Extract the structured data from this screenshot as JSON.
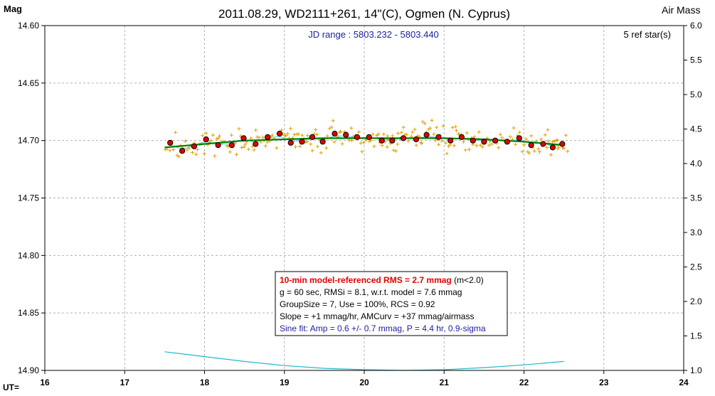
{
  "chart_data": {
    "type": "scatter",
    "title": "2011.08.29, WD2111+261, 14\"(C), Ogmen (N. Cyprus)",
    "y_left_label": "Mag",
    "y_right_label": "Air Mass",
    "x_prefix_label": "UT=",
    "x_range": [
      16,
      24
    ],
    "x_ticks": [
      "16",
      "17",
      "18",
      "19",
      "20",
      "21",
      "22",
      "23",
      "24"
    ],
    "y_left_range": [
      14.6,
      14.9
    ],
    "y_left_inverted": true,
    "y_left_ticks": [
      "14.60",
      "14.65",
      "14.70",
      "14.75",
      "14.80",
      "14.85",
      "14.90"
    ],
    "y_right_range": [
      1.0,
      6.0
    ],
    "y_right_ticks": [
      "6.0",
      "5.5",
      "5.0",
      "4.5",
      "4.0",
      "3.5",
      "3.0",
      "2.5",
      "2.0",
      "1.5",
      "1.0"
    ],
    "grid": true,
    "jd_range_text": "JD range : 5803.232 - 5803.440",
    "ref_stars_text": "5 ref star(s)",
    "stats_box": {
      "line1_bold": "10-min model-referenced RMS = 2.7 mmag",
      "line1_rest": " (m<2.0)",
      "line2": "g = 60 sec, RMSi = 8.1, w.r.t. model = 7.6 mmag",
      "line3": "GroupSize = 7, Use = 100%, RCS = 0.92",
      "line4": "Slope = +1 mmag/hr, AMCurv = +37 mmag/airmass",
      "line5": "Sine fit: Amp = 0.6 +/- 0.7 mmag, P = 4.4 hr, 0.9-sigma"
    },
    "colors": {
      "raw_points": "#e0a000",
      "group_means": "#e00000",
      "model_line": "#008000",
      "sine_fit": "#40d0e0",
      "airmass": "#20b8c8",
      "stats_red": "#e00000",
      "stats_blue": "#2020a0",
      "jd_blue": "#2020a0"
    },
    "series": [
      {
        "role": "group-means",
        "x": [
          17.57,
          17.72,
          17.87,
          18.02,
          18.17,
          18.34,
          18.49,
          18.64,
          18.79,
          18.94,
          19.08,
          19.22,
          19.35,
          19.48,
          19.63,
          19.77,
          19.91,
          20.06,
          20.22,
          20.35,
          20.49,
          20.65,
          20.78,
          20.93,
          21.08,
          21.22,
          21.36,
          21.5,
          21.64,
          21.79,
          21.94,
          22.09,
          22.24,
          22.36,
          22.48
        ],
        "y": [
          14.702,
          14.709,
          14.705,
          14.699,
          14.704,
          14.704,
          14.698,
          14.703,
          14.697,
          14.694,
          14.702,
          14.701,
          14.697,
          14.701,
          14.694,
          14.695,
          14.697,
          14.697,
          14.7,
          14.7,
          14.698,
          14.699,
          14.695,
          14.697,
          14.7,
          14.697,
          14.7,
          14.701,
          14.7,
          14.701,
          14.698,
          14.704,
          14.703,
          14.706,
          14.703
        ]
      },
      {
        "role": "model-trend",
        "x": [
          17.5,
          18.0,
          18.5,
          19.0,
          19.5,
          20.0,
          20.5,
          21.0,
          21.5,
          22.0,
          22.5
        ],
        "y": [
          14.706,
          14.703,
          14.7,
          14.699,
          14.698,
          14.698,
          14.698,
          14.698,
          14.699,
          14.701,
          14.704
        ]
      },
      {
        "role": "airmass",
        "x": [
          17.5,
          18.0,
          18.5,
          19.0,
          19.5,
          20.0,
          20.5,
          21.0,
          21.5,
          22.0,
          22.5
        ],
        "y": [
          1.27,
          1.2,
          1.13,
          1.07,
          1.03,
          1.01,
          1.0,
          1.01,
          1.04,
          1.08,
          1.13
        ]
      }
    ]
  }
}
